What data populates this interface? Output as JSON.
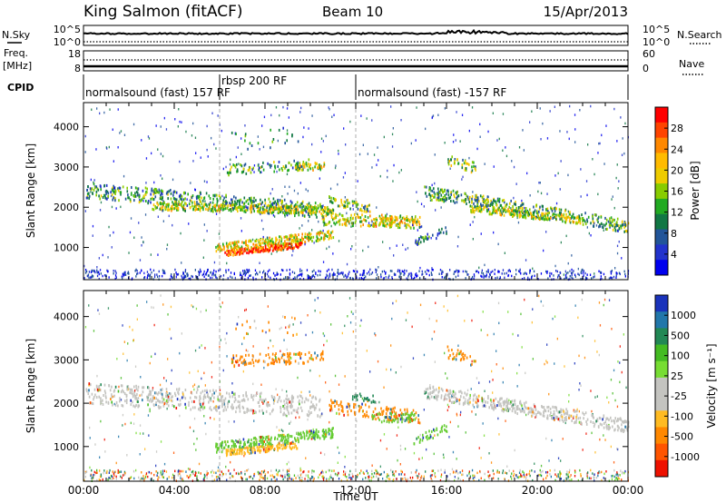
{
  "header": {
    "station": "King Salmon (fitACF)",
    "beam": "Beam 10",
    "date": "15/Apr/2013"
  },
  "summary_panels": {
    "nsky_label": "N.Sky",
    "nsky_ticks": [
      "10^5",
      "10^0"
    ],
    "nsearch_label": "N.Search",
    "nsearch_ticks": [
      "10^5",
      "10^0"
    ],
    "freq_label": "Freq.",
    "freq_unit": "[MHz]",
    "freq_ticks": [
      "18",
      "8"
    ],
    "nave_label": "Nave",
    "nave_ticks": [
      "60",
      "0"
    ],
    "cpid_label": "CPID"
  },
  "cpid": {
    "segments": [
      {
        "label": "normalsound (fast) 157 RF",
        "start_hour": 0.0
      },
      {
        "label": "rbsp 200 RF",
        "start_hour": 6.0
      },
      {
        "label": "normalsound (fast) -157 RF",
        "start_hour": 12.0
      }
    ]
  },
  "chart_data": [
    {
      "type": "heatmap",
      "name": "power",
      "ylabel": "Slant Range [km]",
      "yticks": [
        1000,
        2000,
        3000,
        4000
      ],
      "ylim": [
        200,
        4600
      ],
      "xlim": [
        0,
        24
      ],
      "colorbar": {
        "label": "Power [dB]",
        "ticks": [
          "28",
          "24",
          "20",
          "16",
          "12",
          "8",
          "4"
        ],
        "colors": [
          "#ff0000",
          "#ff4400",
          "#ff8800",
          "#ffbb00",
          "#eecc00",
          "#88cc00",
          "#22aa22",
          "#117744",
          "#225599",
          "#2233cc",
          "#0000ee"
        ]
      },
      "regions": [
        {
          "t0": 0.1,
          "t1": 10.5,
          "r0": 2450,
          "r1": 1950,
          "w": 380,
          "level": 0.35,
          "density": 0.8
        },
        {
          "t0": 3.0,
          "t1": 11.0,
          "r0": 2050,
          "r1": 1950,
          "w": 180,
          "level": 0.55,
          "density": 0.7
        },
        {
          "t0": 5.8,
          "t1": 11.0,
          "r0": 1000,
          "r1": 1350,
          "w": 230,
          "level": 0.6,
          "density": 0.85
        },
        {
          "t0": 6.2,
          "t1": 9.6,
          "r0": 880,
          "r1": 1100,
          "w": 140,
          "level": 0.9,
          "density": 0.9
        },
        {
          "t0": 10.5,
          "t1": 14.8,
          "r0": 1750,
          "r1": 1650,
          "w": 300,
          "level": 0.55,
          "density": 0.7
        },
        {
          "t0": 12.7,
          "t1": 14.6,
          "r0": 1650,
          "r1": 1700,
          "w": 220,
          "level": 0.65,
          "density": 0.6
        },
        {
          "t0": 10.8,
          "t1": 12.6,
          "r0": 2200,
          "r1": 2000,
          "w": 220,
          "level": 0.45,
          "density": 0.55
        },
        {
          "t0": 6.3,
          "t1": 10.0,
          "r0": 2950,
          "r1": 3100,
          "w": 260,
          "level": 0.35,
          "density": 0.35
        },
        {
          "t0": 9.3,
          "t1": 10.6,
          "r0": 3050,
          "r1": 3050,
          "w": 200,
          "level": 0.55,
          "density": 0.6
        },
        {
          "t0": 16.0,
          "t1": 17.3,
          "r0": 3200,
          "r1": 3000,
          "w": 280,
          "level": 0.45,
          "density": 0.5
        },
        {
          "t0": 15.0,
          "t1": 24.0,
          "r0": 2400,
          "r1": 1550,
          "w": 320,
          "level": 0.4,
          "density": 0.8
        },
        {
          "t0": 17.0,
          "t1": 22.0,
          "r0": 2000,
          "r1": 1700,
          "w": 180,
          "level": 0.55,
          "density": 0.6
        },
        {
          "t0": 14.5,
          "t1": 16.0,
          "r0": 1150,
          "r1": 1450,
          "w": 200,
          "level": 0.3,
          "density": 0.4
        },
        {
          "t0": 6.5,
          "t1": 9.5,
          "r0": 3700,
          "r1": 3800,
          "w": 500,
          "level": 0.25,
          "density": 0.12
        }
      ]
    },
    {
      "type": "heatmap",
      "name": "velocity",
      "ylabel": "Slant Range [km]",
      "yticks": [
        1000,
        2000,
        3000,
        4000
      ],
      "ylim": [
        200,
        4600
      ],
      "xlim": [
        0,
        24
      ],
      "xlabel": "Time UT",
      "xticks": [
        "00:00",
        "04:00",
        "08:00",
        "12:00",
        "16:00",
        "20:00",
        "00:00"
      ],
      "colorbar": {
        "label": "Velocity [m s⁻¹]",
        "ticks": [
          "1000",
          "500",
          "100",
          "25",
          "-25",
          "-100",
          "-500",
          "-1000"
        ],
        "colors": [
          "#1a33bb",
          "#2277aa",
          "#228855",
          "#44bb22",
          "#77dd33",
          "#c4c4c0",
          "#c4c4c0",
          "#ffbb22",
          "#ff8800",
          "#ff5500",
          "#ee1100"
        ]
      },
      "regions": [
        {
          "t0": 0.1,
          "t1": 10.5,
          "r0": 2250,
          "r1": 1950,
          "w": 480,
          "c": "#c4c4c0",
          "density": 0.8
        },
        {
          "t0": 5.8,
          "t1": 11.0,
          "r0": 1000,
          "r1": 1350,
          "w": 230,
          "c": "#66cc33",
          "density": 0.85
        },
        {
          "t0": 6.2,
          "t1": 9.4,
          "r0": 880,
          "r1": 1050,
          "w": 140,
          "c": "#ffbb22",
          "density": 0.7
        },
        {
          "t0": 10.8,
          "t1": 14.8,
          "r0": 1950,
          "r1": 1700,
          "w": 320,
          "c": "#ff8800",
          "density": 0.55
        },
        {
          "t0": 12.7,
          "t1": 14.6,
          "r0": 1700,
          "r1": 1700,
          "w": 220,
          "c": "#66cc33",
          "density": 0.55
        },
        {
          "t0": 11.8,
          "t1": 13.0,
          "r0": 2200,
          "r1": 2100,
          "w": 200,
          "c": "#228855",
          "density": 0.35
        },
        {
          "t0": 6.4,
          "t1": 10.6,
          "r0": 3000,
          "r1": 3100,
          "w": 260,
          "c": "#ff8800",
          "density": 0.5
        },
        {
          "t0": 16.0,
          "t1": 17.3,
          "r0": 3200,
          "r1": 3000,
          "w": 280,
          "c": "#ff8800",
          "density": 0.45
        },
        {
          "t0": 15.0,
          "t1": 24.0,
          "r0": 2300,
          "r1": 1500,
          "w": 300,
          "c": "#c4c4c0",
          "density": 0.8
        },
        {
          "t0": 14.5,
          "t1": 16.0,
          "r0": 1150,
          "r1": 1450,
          "w": 200,
          "c": "#66cc33",
          "density": 0.4
        },
        {
          "t0": 6.5,
          "t1": 9.5,
          "r0": 3700,
          "r1": 3850,
          "w": 500,
          "c": "#ff8800",
          "density": 0.1
        }
      ]
    }
  ]
}
